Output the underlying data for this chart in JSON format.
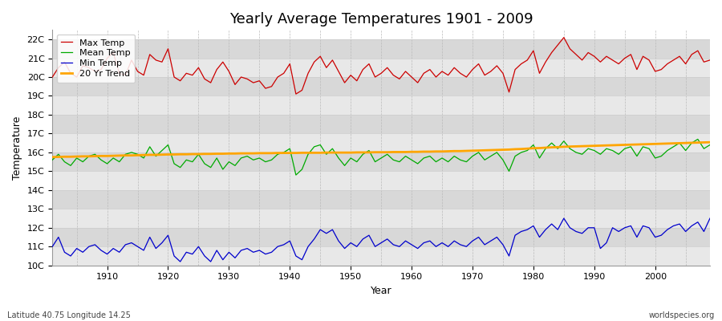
{
  "title": "Yearly Average Temperatures 1901 - 2009",
  "xlabel": "Year",
  "ylabel": "Temperature",
  "subtitle_left": "Latitude 40.75 Longitude 14.25",
  "subtitle_right": "worldspecies.org",
  "ylim": [
    10,
    22.5
  ],
  "yticks": [
    10,
    11,
    12,
    13,
    14,
    15,
    16,
    17,
    18,
    19,
    20,
    21,
    22
  ],
  "ytick_labels": [
    "10C",
    "11C",
    "12C",
    "13C",
    "14C",
    "15C",
    "16C",
    "17C",
    "18C",
    "19C",
    "20C",
    "21C",
    "22C"
  ],
  "start_year": 1901,
  "end_year": 2009,
  "colors": {
    "max_temp": "#cc0000",
    "mean_temp": "#00aa00",
    "min_temp": "#0000cc",
    "trend": "#ffa500",
    "background_light": "#e8e8e8",
    "background_dark": "#d8d8d8",
    "grid_v": "#bbbbbb",
    "grid_h": "#cccccc"
  },
  "max_temp": [
    20.0,
    20.5,
    20.8,
    20.2,
    20.0,
    20.6,
    20.5,
    20.3,
    20.4,
    21.0,
    21.3,
    20.2,
    20.1,
    20.9,
    20.3,
    20.1,
    21.2,
    20.9,
    20.8,
    21.5,
    20.0,
    19.8,
    20.2,
    20.1,
    20.5,
    19.9,
    19.7,
    20.4,
    20.8,
    20.3,
    19.6,
    20.0,
    19.9,
    19.7,
    19.8,
    19.4,
    19.5,
    20.0,
    20.2,
    20.7,
    19.1,
    19.3,
    20.2,
    20.8,
    21.1,
    20.5,
    20.9,
    20.3,
    19.7,
    20.1,
    19.8,
    20.4,
    20.7,
    20.0,
    20.2,
    20.5,
    20.1,
    19.9,
    20.3,
    20.0,
    19.7,
    20.2,
    20.4,
    20.0,
    20.3,
    20.1,
    20.5,
    20.2,
    20.0,
    20.4,
    20.7,
    20.1,
    20.3,
    20.6,
    20.2,
    19.2,
    20.4,
    20.7,
    20.9,
    21.4,
    20.2,
    20.8,
    21.3,
    21.7,
    22.1,
    21.5,
    21.2,
    20.9,
    21.3,
    21.1,
    20.8,
    21.1,
    20.9,
    20.7,
    21.0,
    21.2,
    20.4,
    21.1,
    20.9,
    20.3,
    20.4,
    20.7,
    20.9,
    21.1,
    20.7,
    21.2,
    21.4,
    20.8,
    20.9
  ],
  "mean_temp": [
    15.6,
    15.9,
    15.5,
    15.3,
    15.7,
    15.5,
    15.8,
    15.9,
    15.6,
    15.4,
    15.7,
    15.5,
    15.9,
    16.0,
    15.9,
    15.7,
    16.3,
    15.8,
    16.1,
    16.4,
    15.4,
    15.2,
    15.6,
    15.5,
    15.9,
    15.4,
    15.2,
    15.7,
    15.1,
    15.5,
    15.3,
    15.7,
    15.8,
    15.6,
    15.7,
    15.5,
    15.6,
    15.9,
    16.0,
    16.2,
    14.8,
    15.1,
    15.9,
    16.3,
    16.4,
    15.9,
    16.2,
    15.7,
    15.3,
    15.7,
    15.5,
    15.9,
    16.1,
    15.5,
    15.7,
    15.9,
    15.6,
    15.5,
    15.8,
    15.6,
    15.4,
    15.7,
    15.8,
    15.5,
    15.7,
    15.5,
    15.8,
    15.6,
    15.5,
    15.8,
    16.0,
    15.6,
    15.8,
    16.0,
    15.6,
    15.0,
    15.8,
    16.0,
    16.1,
    16.4,
    15.7,
    16.2,
    16.5,
    16.2,
    16.6,
    16.2,
    16.0,
    15.9,
    16.2,
    16.1,
    15.9,
    16.2,
    16.1,
    15.9,
    16.2,
    16.3,
    15.8,
    16.3,
    16.2,
    15.7,
    15.8,
    16.1,
    16.3,
    16.5,
    16.1,
    16.5,
    16.7,
    16.2,
    16.4
  ],
  "min_temp": [
    11.0,
    11.5,
    10.7,
    10.5,
    10.9,
    10.7,
    11.0,
    11.1,
    10.8,
    10.6,
    10.9,
    10.7,
    11.1,
    11.2,
    11.0,
    10.8,
    11.5,
    10.9,
    11.2,
    11.6,
    10.5,
    10.2,
    10.7,
    10.6,
    11.0,
    10.5,
    10.2,
    10.8,
    10.3,
    10.7,
    10.4,
    10.8,
    10.9,
    10.7,
    10.8,
    10.6,
    10.7,
    11.0,
    11.1,
    11.3,
    10.5,
    10.3,
    11.0,
    11.4,
    11.9,
    11.7,
    11.9,
    11.3,
    10.9,
    11.2,
    11.0,
    11.4,
    11.6,
    11.0,
    11.2,
    11.4,
    11.1,
    11.0,
    11.3,
    11.1,
    10.9,
    11.2,
    11.3,
    11.0,
    11.2,
    11.0,
    11.3,
    11.1,
    11.0,
    11.3,
    11.5,
    11.1,
    11.3,
    11.5,
    11.1,
    10.5,
    11.6,
    11.8,
    11.9,
    12.1,
    11.5,
    11.9,
    12.2,
    11.9,
    12.5,
    12.0,
    11.8,
    11.7,
    12.0,
    12.0,
    10.9,
    11.2,
    12.0,
    11.8,
    12.0,
    12.1,
    11.5,
    12.1,
    12.0,
    11.5,
    11.6,
    11.9,
    12.1,
    12.2,
    11.8,
    12.1,
    12.3,
    11.8,
    12.5
  ],
  "trend": [
    15.75,
    15.76,
    15.77,
    15.77,
    15.78,
    15.79,
    15.79,
    15.8,
    15.81,
    15.81,
    15.82,
    15.83,
    15.84,
    15.84,
    15.85,
    15.86,
    15.87,
    15.87,
    15.88,
    15.89,
    15.89,
    15.9,
    15.9,
    15.91,
    15.91,
    15.92,
    15.92,
    15.93,
    15.93,
    15.94,
    15.94,
    15.95,
    15.95,
    15.95,
    15.96,
    15.96,
    15.96,
    15.97,
    15.97,
    15.97,
    15.97,
    15.98,
    15.98,
    15.98,
    15.98,
    15.99,
    15.99,
    15.99,
    15.99,
    15.99,
    16.0,
    16.0,
    16.0,
    16.01,
    16.01,
    16.01,
    16.02,
    16.02,
    16.02,
    16.03,
    16.03,
    16.04,
    16.04,
    16.05,
    16.05,
    16.06,
    16.07,
    16.07,
    16.08,
    16.09,
    16.1,
    16.11,
    16.12,
    16.13,
    16.14,
    16.15,
    16.17,
    16.18,
    16.2,
    16.22,
    16.23,
    16.25,
    16.27,
    16.28,
    16.3,
    16.31,
    16.32,
    16.33,
    16.34,
    16.35,
    16.36,
    16.37,
    16.38,
    16.39,
    16.4,
    16.41,
    16.42,
    16.43,
    16.44,
    16.45,
    16.46,
    16.47,
    16.48,
    16.49,
    16.5,
    16.51,
    16.52,
    16.53,
    16.54
  ]
}
